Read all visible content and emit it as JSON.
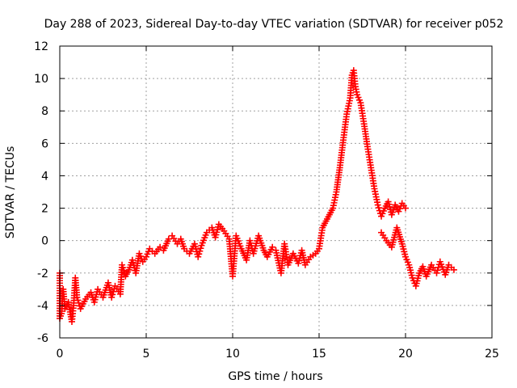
{
  "chart_data": {
    "type": "scatter",
    "title": "Day 288 of 2023, Sidereal Day-to-day VTEC variation (SDTVAR) for receiver p052",
    "xlabel": "GPS time / hours",
    "ylabel": "SDTVAR / TECUs",
    "xlim": [
      0,
      25
    ],
    "ylim": [
      -6,
      12
    ],
    "x_ticks": [
      0,
      5,
      10,
      15,
      20,
      25
    ],
    "y_ticks": [
      -6,
      -4,
      -2,
      0,
      2,
      4,
      6,
      8,
      10,
      12
    ],
    "grid": true,
    "legend": "none",
    "marker": "+",
    "series": [
      {
        "name": "SDTVAR",
        "color": "#ff0000",
        "points": [
          [
            0.0,
            -2.0
          ],
          [
            0.0,
            -4.8
          ],
          [
            0.1,
            -4.5
          ],
          [
            0.2,
            -3.0
          ],
          [
            0.3,
            -4.2
          ],
          [
            0.5,
            -3.8
          ],
          [
            0.7,
            -5.0
          ],
          [
            0.8,
            -4.0
          ],
          [
            0.9,
            -2.3
          ],
          [
            1.0,
            -3.5
          ],
          [
            1.2,
            -4.2
          ],
          [
            1.5,
            -3.6
          ],
          [
            1.8,
            -3.2
          ],
          [
            2.0,
            -3.8
          ],
          [
            2.2,
            -3.0
          ],
          [
            2.5,
            -3.5
          ],
          [
            2.8,
            -2.6
          ],
          [
            3.0,
            -3.5
          ],
          [
            3.2,
            -2.8
          ],
          [
            3.5,
            -3.3
          ],
          [
            3.6,
            -1.5
          ],
          [
            3.8,
            -2.2
          ],
          [
            4.0,
            -1.8
          ],
          [
            4.2,
            -1.2
          ],
          [
            4.4,
            -2.0
          ],
          [
            4.6,
            -0.8
          ],
          [
            4.8,
            -1.3
          ],
          [
            5.0,
            -1.0
          ],
          [
            5.2,
            -0.5
          ],
          [
            5.5,
            -0.8
          ],
          [
            5.8,
            -0.4
          ],
          [
            6.0,
            -0.6
          ],
          [
            6.3,
            0.1
          ],
          [
            6.5,
            0.3
          ],
          [
            6.8,
            -0.2
          ],
          [
            7.0,
            0.1
          ],
          [
            7.2,
            -0.5
          ],
          [
            7.5,
            -0.8
          ],
          [
            7.8,
            -0.2
          ],
          [
            8.0,
            -1.0
          ],
          [
            8.2,
            -0.3
          ],
          [
            8.5,
            0.5
          ],
          [
            8.8,
            0.8
          ],
          [
            9.0,
            0.2
          ],
          [
            9.2,
            1.0
          ],
          [
            9.5,
            0.6
          ],
          [
            9.8,
            0.1
          ],
          [
            10.0,
            -2.2
          ],
          [
            10.2,
            0.3
          ],
          [
            10.5,
            -0.5
          ],
          [
            10.8,
            -1.2
          ],
          [
            11.0,
            0.0
          ],
          [
            11.2,
            -0.8
          ],
          [
            11.5,
            0.3
          ],
          [
            11.8,
            -0.6
          ],
          [
            12.0,
            -1.0
          ],
          [
            12.3,
            -0.4
          ],
          [
            12.5,
            -0.6
          ],
          [
            12.8,
            -2.0
          ],
          [
            13.0,
            -0.2
          ],
          [
            13.2,
            -1.5
          ],
          [
            13.5,
            -0.8
          ],
          [
            13.8,
            -1.4
          ],
          [
            14.0,
            -0.6
          ],
          [
            14.2,
            -1.5
          ],
          [
            14.5,
            -1.0
          ],
          [
            14.8,
            -0.8
          ],
          [
            15.0,
            -0.5
          ],
          [
            15.2,
            0.8
          ],
          [
            15.4,
            1.2
          ],
          [
            15.6,
            1.6
          ],
          [
            15.8,
            2.0
          ],
          [
            16.0,
            3.0
          ],
          [
            16.2,
            4.5
          ],
          [
            16.4,
            6.2
          ],
          [
            16.6,
            7.8
          ],
          [
            16.8,
            8.8
          ],
          [
            16.9,
            10.2
          ],
          [
            17.0,
            10.5
          ],
          [
            17.1,
            9.5
          ],
          [
            17.2,
            9.0
          ],
          [
            17.4,
            8.5
          ],
          [
            17.6,
            7.2
          ],
          [
            17.8,
            5.8
          ],
          [
            18.0,
            4.5
          ],
          [
            18.2,
            3.2
          ],
          [
            18.4,
            2.2
          ],
          [
            18.6,
            1.5
          ],
          [
            18.8,
            2.0
          ],
          [
            19.0,
            2.4
          ],
          [
            19.2,
            1.6
          ],
          [
            19.4,
            2.2
          ],
          [
            19.6,
            1.8
          ],
          [
            19.8,
            2.3
          ],
          [
            20.0,
            2.0
          ],
          [
            18.6,
            0.5
          ],
          [
            18.9,
            0.0
          ],
          [
            19.2,
            -0.4
          ],
          [
            19.5,
            0.8
          ],
          [
            19.8,
            -0.2
          ],
          [
            20.0,
            -1.0
          ],
          [
            20.2,
            -1.5
          ],
          [
            20.4,
            -2.3
          ],
          [
            20.6,
            -2.8
          ],
          [
            20.8,
            -2.0
          ],
          [
            21.0,
            -1.6
          ],
          [
            21.2,
            -2.2
          ],
          [
            21.5,
            -1.5
          ],
          [
            21.8,
            -2.0
          ],
          [
            22.0,
            -1.3
          ],
          [
            22.3,
            -2.1
          ],
          [
            22.5,
            -1.5
          ],
          [
            22.8,
            -1.8
          ]
        ]
      }
    ]
  }
}
